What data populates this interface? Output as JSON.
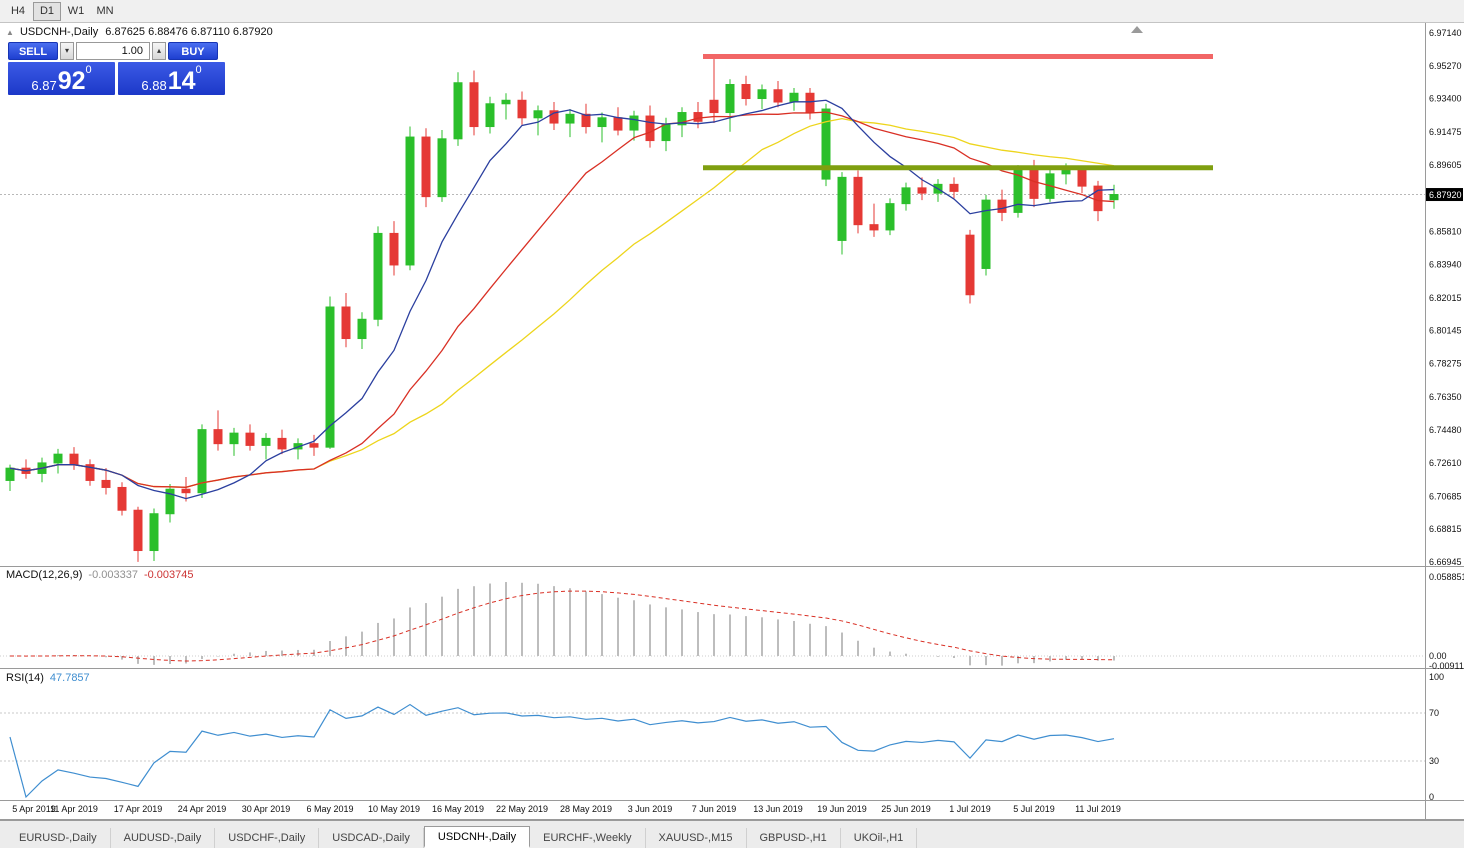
{
  "toolbar": {
    "periods": [
      {
        "label": "H4",
        "active": false
      },
      {
        "label": "D1",
        "active": true
      },
      {
        "label": "W1",
        "active": false
      },
      {
        "label": "MN",
        "active": false
      }
    ]
  },
  "chart": {
    "symbol_title": "USDCNH-,Daily",
    "ohlc_text": "6.87625 6.88476 6.87110 6.87920",
    "oct_toggle_glyph": "▲"
  },
  "oct": {
    "sell_label": "SELL",
    "buy_label": "BUY",
    "volume": "1.00",
    "icons": {
      "down": "▾",
      "up": "▴"
    },
    "sell_price": {
      "base": "6.87",
      "big": "92",
      "sup": "0"
    },
    "buy_price": {
      "base": "6.88",
      "big": "14",
      "sup": "0"
    }
  },
  "price_axis": {
    "labels": [
      "6.97140",
      "6.95270",
      "6.93400",
      "6.91475",
      "6.89605",
      "6.85810",
      "6.83940",
      "6.82015",
      "6.80145",
      "6.78275",
      "6.76350",
      "6.74480",
      "6.72610",
      "6.70685",
      "6.68815",
      "6.66945"
    ],
    "current": "6.87920"
  },
  "macd_panel": {
    "label": "MACD(12,26,9)",
    "value1": "-0.003337",
    "value2": "-0.003745",
    "axis": [
      "0.058851",
      "0.00",
      "-0.009116"
    ]
  },
  "rsi_panel": {
    "label": "RSI(14)",
    "value": "47.7857",
    "axis": [
      "100",
      "70",
      "30",
      "0"
    ]
  },
  "tabs": [
    {
      "label": "EURUSD-,Daily",
      "active": false
    },
    {
      "label": "AUDUSD-,Daily",
      "active": false
    },
    {
      "label": "USDCHF-,Daily",
      "active": false
    },
    {
      "label": "USDCAD-,Daily",
      "active": false
    },
    {
      "label": "USDCNH-,Daily",
      "active": true
    },
    {
      "label": "EURCHF-,Weekly",
      "active": false
    },
    {
      "label": "XAUUSD-,M15",
      "active": false
    },
    {
      "label": "GBPUSD-,H1",
      "active": false
    },
    {
      "label": "UKOil-,H1",
      "active": false
    }
  ],
  "colors": {
    "bull": "#2bbf2b",
    "bear": "#e53935",
    "ma_fast": "#2b3f9f",
    "ma_mid": "#d93025",
    "ma_slow": "#edd51c",
    "macd_hist": "#bdbdbd",
    "macd_signal": "#d93025",
    "rsi": "#3f8ed0",
    "resistance": "#f26666",
    "support": "#7f9f10"
  },
  "chart_data": {
    "type": "candlestick",
    "title": "USDCNH-,Daily",
    "ylim": [
      6.66945,
      6.9714
    ],
    "current_price": 6.8792,
    "x_labels": [
      "5 Apr 2019",
      "11 Apr 2019",
      "17 Apr 2019",
      "24 Apr 2019",
      "30 Apr 2019",
      "6 May 2019",
      "10 May 2019",
      "16 May 2019",
      "22 May 2019",
      "28 May 2019",
      "3 Jun 2019",
      "7 Jun 2019",
      "13 Jun 2019",
      "19 Jun 2019",
      "25 Jun 2019",
      "1 Jul 2019",
      "5 Jul 2019",
      "11 Jul 2019"
    ],
    "x_label_every_n_candles": 4,
    "candles": [
      [
        6.716,
        6.725,
        6.71,
        6.723
      ],
      [
        6.723,
        6.728,
        6.717,
        6.72
      ],
      [
        6.72,
        6.729,
        6.715,
        6.726
      ],
      [
        6.726,
        6.734,
        6.72,
        6.731
      ],
      [
        6.731,
        6.735,
        6.722,
        6.725
      ],
      [
        6.725,
        6.728,
        6.713,
        6.716
      ],
      [
        6.716,
        6.723,
        6.708,
        6.712
      ],
      [
        6.712,
        6.715,
        6.696,
        6.699
      ],
      [
        6.699,
        6.701,
        6.6695,
        6.676
      ],
      [
        6.676,
        6.7,
        6.67,
        6.697
      ],
      [
        6.697,
        6.714,
        6.692,
        6.711
      ],
      [
        6.711,
        6.718,
        6.704,
        6.709
      ],
      [
        6.709,
        6.748,
        6.706,
        6.745
      ],
      [
        6.745,
        6.756,
        6.733,
        6.737
      ],
      [
        6.737,
        6.746,
        6.73,
        6.743
      ],
      [
        6.743,
        6.748,
        6.733,
        6.736
      ],
      [
        6.736,
        6.743,
        6.728,
        6.74
      ],
      [
        6.74,
        6.745,
        6.731,
        6.734
      ],
      [
        6.734,
        6.74,
        6.728,
        6.737
      ],
      [
        6.737,
        6.742,
        6.73,
        6.735
      ],
      [
        6.735,
        6.821,
        6.734,
        6.815
      ],
      [
        6.815,
        6.823,
        6.792,
        6.797
      ],
      [
        6.797,
        6.812,
        6.791,
        6.808
      ],
      [
        6.808,
        6.861,
        6.804,
        6.857
      ],
      [
        6.857,
        6.864,
        6.833,
        6.839
      ],
      [
        6.839,
        6.918,
        6.836,
        6.912
      ],
      [
        6.912,
        6.917,
        6.872,
        6.878
      ],
      [
        6.878,
        6.916,
        6.875,
        6.911
      ],
      [
        6.911,
        6.949,
        6.907,
        6.943
      ],
      [
        6.943,
        6.95,
        6.913,
        6.918
      ],
      [
        6.918,
        6.935,
        6.914,
        6.931
      ],
      [
        6.931,
        6.937,
        6.922,
        6.933
      ],
      [
        6.933,
        6.938,
        6.919,
        6.923
      ],
      [
        6.923,
        6.93,
        6.913,
        6.927
      ],
      [
        6.927,
        6.932,
        6.916,
        6.92
      ],
      [
        6.92,
        6.928,
        6.912,
        6.925
      ],
      [
        6.925,
        6.931,
        6.914,
        6.918
      ],
      [
        6.918,
        6.926,
        6.909,
        6.923
      ],
      [
        6.923,
        6.929,
        6.913,
        6.916
      ],
      [
        6.916,
        6.927,
        6.91,
        6.924
      ],
      [
        6.924,
        6.93,
        6.906,
        6.91
      ],
      [
        6.91,
        6.923,
        6.904,
        6.919
      ],
      [
        6.919,
        6.929,
        6.912,
        6.926
      ],
      [
        6.926,
        6.932,
        6.917,
        6.921
      ],
      [
        6.933,
        6.959,
        6.92,
        6.926
      ],
      [
        6.926,
        6.945,
        6.915,
        6.942
      ],
      [
        6.942,
        6.947,
        6.93,
        6.934
      ],
      [
        6.934,
        6.942,
        6.928,
        6.939
      ],
      [
        6.939,
        6.944,
        6.929,
        6.932
      ],
      [
        6.932,
        6.94,
        6.927,
        6.937
      ],
      [
        6.937,
        6.94,
        6.922,
        6.926
      ],
      [
        6.888,
        6.931,
        6.884,
        6.928
      ],
      [
        6.853,
        6.892,
        6.845,
        6.889
      ],
      [
        6.889,
        6.893,
        6.857,
        6.862
      ],
      [
        6.862,
        6.874,
        6.855,
        6.859
      ],
      [
        6.859,
        6.877,
        6.856,
        6.874
      ],
      [
        6.874,
        6.886,
        6.87,
        6.883
      ],
      [
        6.883,
        6.889,
        6.876,
        6.88
      ],
      [
        6.88,
        6.888,
        6.875,
        6.885
      ],
      [
        6.885,
        6.889,
        6.877,
        6.881
      ],
      [
        6.856,
        6.859,
        6.817,
        6.822
      ],
      [
        6.837,
        6.879,
        6.833,
        6.876
      ],
      [
        6.876,
        6.882,
        6.864,
        6.869
      ],
      [
        6.869,
        6.896,
        6.866,
        6.893
      ],
      [
        6.893,
        6.899,
        6.872,
        6.877
      ],
      [
        6.877,
        6.894,
        6.875,
        6.891
      ],
      [
        6.891,
        6.897,
        6.885,
        6.893
      ],
      [
        6.893,
        6.895,
        6.88,
        6.884
      ],
      [
        6.884,
        6.887,
        6.864,
        6.87
      ],
      [
        6.87625,
        6.88476,
        6.8711,
        6.8792
      ]
    ],
    "moving_averages": [
      {
        "window": 8,
        "color_key": "ma_fast"
      },
      {
        "window": 17,
        "color_key": "ma_mid"
      },
      {
        "window": 28,
        "color_key": "ma_slow"
      }
    ],
    "hlines": [
      {
        "name": "resistance",
        "price": 6.958,
        "color": "#f26666",
        "width": 5
      },
      {
        "name": "support",
        "price": 6.8945,
        "color": "#7f9f10",
        "width": 5
      }
    ],
    "indicators": {
      "macd": {
        "fast": 12,
        "slow": 26,
        "signal": 9,
        "shown_values": "-0.003337 -0.003745"
      },
      "rsi": {
        "period": 14,
        "shown_value": 47.7857,
        "levels": [
          70,
          30
        ]
      }
    }
  }
}
